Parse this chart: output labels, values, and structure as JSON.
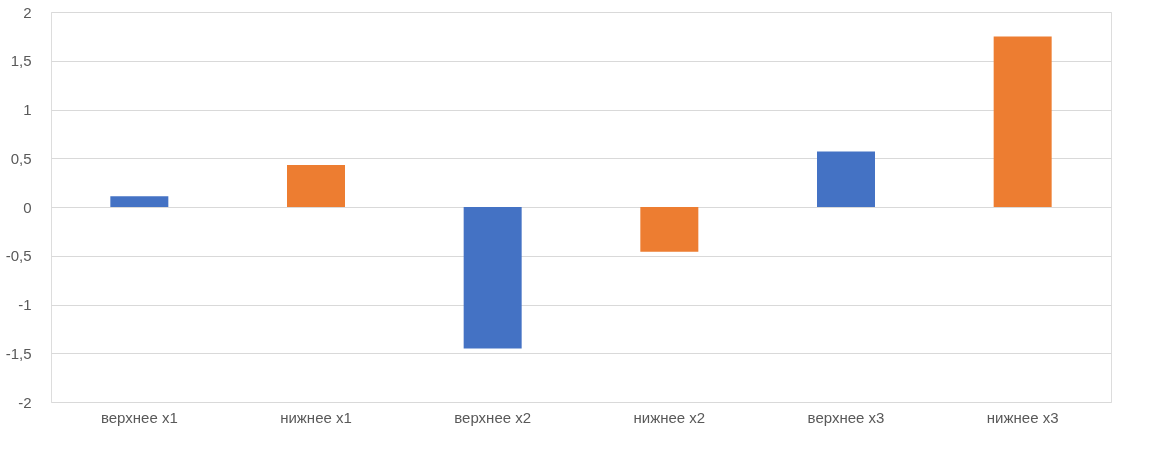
{
  "chart_data": {
    "type": "bar",
    "categories": [
      "верхнее x1",
      "нижнее x1",
      "верхнее x2",
      "нижнее x2",
      "верхнее x3",
      "нижнее x3"
    ],
    "values": [
      0.11,
      0.43,
      -1.45,
      -0.46,
      0.57,
      1.75
    ],
    "colors": [
      "#4472c4",
      "#ed7d31",
      "#4472c4",
      "#ed7d31",
      "#4472c4",
      "#ed7d31"
    ],
    "ylim": [
      -2,
      2
    ],
    "yticks": [
      {
        "value": -2,
        "label": "-2"
      },
      {
        "value": -1.5,
        "label": "-1,5"
      },
      {
        "value": -1,
        "label": "-1"
      },
      {
        "value": -0.5,
        "label": "-0,5"
      },
      {
        "value": 0,
        "label": "0"
      },
      {
        "value": 0.5,
        "label": "0,5"
      },
      {
        "value": 1,
        "label": "1"
      },
      {
        "value": 1.5,
        "label": "1,5"
      },
      {
        "value": 2,
        "label": "2"
      }
    ],
    "grid": "y"
  }
}
